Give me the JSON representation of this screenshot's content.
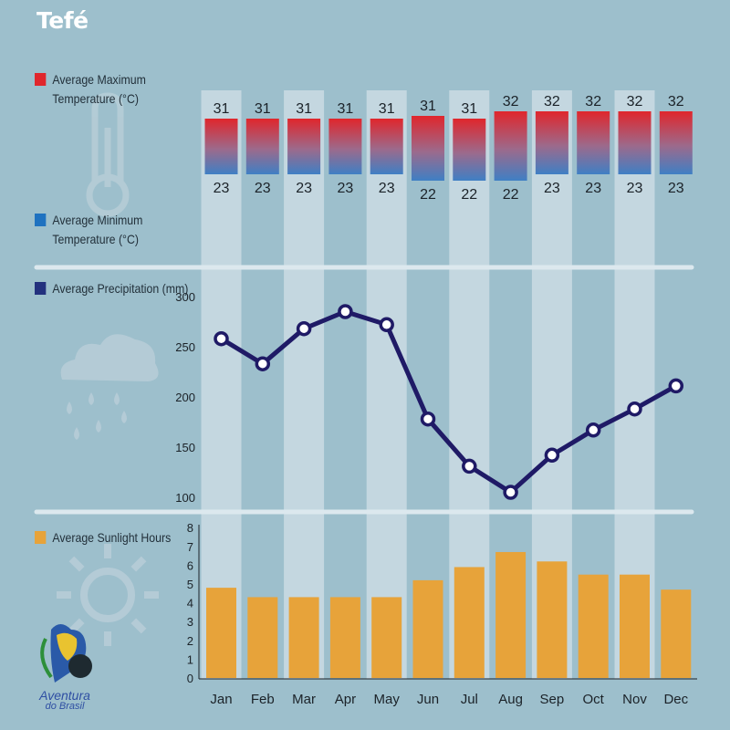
{
  "title": "Tefé",
  "legend": {
    "max_temp": "Average Maximum Temperature (°C)",
    "min_temp": "Average Minimum Temperature (°C)",
    "precipitation": "Average Precipitation (mm)",
    "sunlight": "Average Sunlight Hours"
  },
  "logo": {
    "line1": "Aventura",
    "line2": "do Brasil"
  },
  "colors": {
    "background": "#9dbfcc",
    "column_band": "#c4d7e0",
    "temp_max": "#e0262c",
    "temp_min": "#3f7fc4",
    "precipitation": "#1f1a66",
    "sunlight": "#e7a33a"
  },
  "chart_data": [
    {
      "type": "bar",
      "title": "",
      "categories": [
        "Jan",
        "Feb",
        "Mar",
        "Apr",
        "May",
        "Jun",
        "Jul",
        "Aug",
        "Sep",
        "Oct",
        "Nov",
        "Dec"
      ],
      "series": [
        {
          "name": "Average Maximum Temperature (°C)",
          "values": [
            31,
            31,
            31,
            31,
            31,
            31,
            31,
            32,
            32,
            32,
            32,
            32
          ]
        },
        {
          "name": "Average Minimum Temperature (°C)",
          "values": [
            23,
            23,
            23,
            23,
            23,
            22,
            22,
            22,
            23,
            23,
            23,
            23
          ]
        }
      ]
    },
    {
      "type": "line",
      "categories": [
        "Jan",
        "Feb",
        "Mar",
        "Apr",
        "May",
        "Jun",
        "Jul",
        "Aug",
        "Sep",
        "Oct",
        "Nov",
        "Dec"
      ],
      "series": [
        {
          "name": "Average Precipitation (mm)",
          "values": [
            258,
            233,
            268,
            285,
            272,
            178,
            131,
            105,
            142,
            167,
            188,
            211
          ]
        }
      ],
      "yticks": [
        100,
        150,
        200,
        250,
        300
      ],
      "ylim": [
        100,
        300
      ]
    },
    {
      "type": "bar",
      "categories": [
        "Jan",
        "Feb",
        "Mar",
        "Apr",
        "May",
        "Jun",
        "Jul",
        "Aug",
        "Sep",
        "Oct",
        "Nov",
        "Dec"
      ],
      "series": [
        {
          "name": "Average Sunlight Hours",
          "values": [
            4.8,
            4.3,
            4.3,
            4.3,
            4.3,
            5.2,
            5.9,
            6.7,
            6.2,
            5.5,
            5.5,
            4.7
          ]
        }
      ],
      "yticks": [
        0,
        1,
        2,
        3,
        4,
        5,
        6,
        7,
        8
      ],
      "ylim": [
        0,
        8
      ]
    }
  ]
}
